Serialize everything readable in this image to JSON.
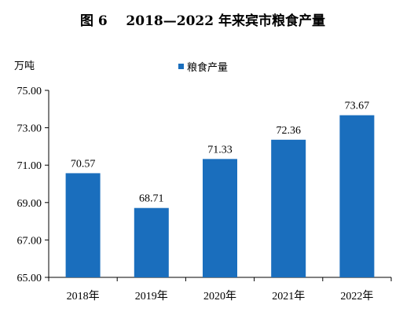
{
  "chart_data": {
    "type": "bar",
    "title": "图 6    2018—2022 年来宾市粮食产量",
    "unit_label": "万吨",
    "categories": [
      "2018年",
      "2019年",
      "2020年",
      "2021年",
      "2022年"
    ],
    "series": [
      {
        "name": "粮食产量",
        "values": [
          70.57,
          68.71,
          71.33,
          72.36,
          73.67
        ],
        "color": "#1a6ebd"
      }
    ],
    "data_labels": [
      "70.57",
      "68.71",
      "71.33",
      "72.36",
      "73.67"
    ],
    "yticks": [
      "65.00",
      "67.00",
      "69.00",
      "71.00",
      "73.00",
      "75.00"
    ],
    "ylim": [
      65,
      75
    ],
    "grid": false,
    "legend_position": "top-center"
  }
}
